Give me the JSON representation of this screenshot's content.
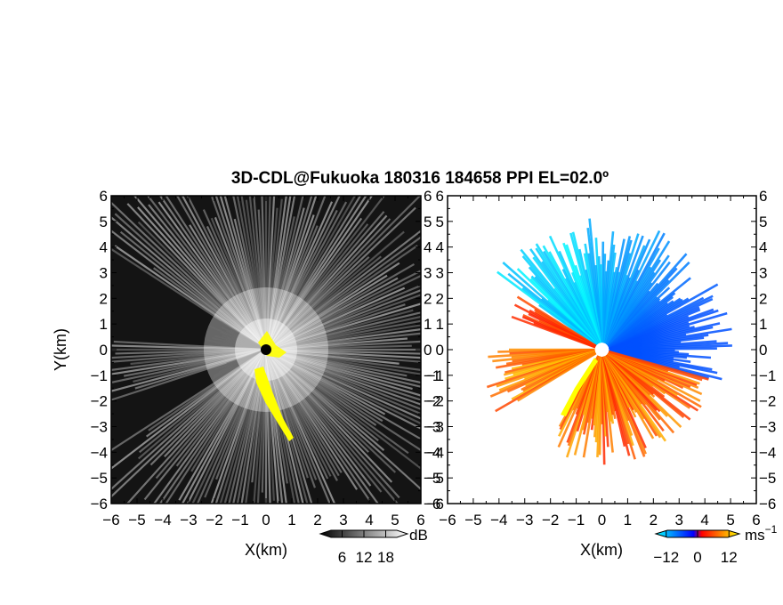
{
  "chart_data": {
    "title": "3D-CDL@Fukuoka 180316 184658 PPI EL=02.0º",
    "panels": [
      {
        "type": "heatmap",
        "quantity_unit": "dB",
        "xlabel": "X(km)",
        "ylabel": "Y(km)",
        "xlim": [
          -6,
          6
        ],
        "ylim": [
          -6,
          6
        ],
        "xticks": [
          "−6",
          "−5",
          "−4",
          "−3",
          "−2",
          "−1",
          "0",
          "1",
          "2",
          "3",
          "4",
          "5",
          "6"
        ],
        "yticks": [
          "6",
          "5",
          "4",
          "3",
          "2",
          "1",
          "0",
          "−1",
          "−2",
          "−3",
          "−4",
          "−5",
          "−6"
        ],
        "colorbar": {
          "label": "dB",
          "ticks": [
            "6",
            "12",
            "18"
          ],
          "tick_values": [
            6,
            12,
            18
          ],
          "range": [
            0,
            24
          ],
          "colors": [
            "#000000",
            "#ffffff"
          ]
        },
        "overlay_color": "#ffff00"
      },
      {
        "type": "heatmap",
        "quantity_unit": "ms⁻¹",
        "xlabel": "X(km)",
        "xlim": [
          -6,
          6
        ],
        "ylim": [
          -6,
          6
        ],
        "xticks": [
          "−6",
          "−5",
          "−4",
          "−3",
          "−2",
          "−1",
          "0",
          "1",
          "2",
          "3",
          "4",
          "5",
          "6"
        ],
        "yticks": [
          "6",
          "5",
          "4",
          "3",
          "2",
          "1",
          "0",
          "−1",
          "−2",
          "−3",
          "−4",
          "−5",
          "−6"
        ],
        "colorbar": {
          "label": "ms",
          "label_sup": "−1",
          "ticks": [
            "−12",
            "0",
            "12"
          ],
          "tick_values": [
            -12,
            0,
            12
          ],
          "range": [
            -16,
            16
          ],
          "colors": [
            "#00ffff",
            "#0000ff",
            "#ff0000",
            "#ffff00"
          ]
        }
      }
    ]
  }
}
